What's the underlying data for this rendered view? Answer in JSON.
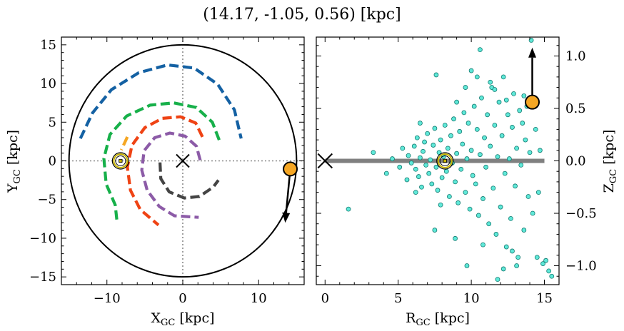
{
  "title": "(14.17, -1.05, 0.56) [kpc]",
  "left_panel": {
    "xlabel_main": "X",
    "xlabel_sub": "GC",
    "xlabel_unit": " [kpc]",
    "ylabel_main": "Y",
    "ylabel_sub": "GC",
    "ylabel_unit": " [kpc]"
  },
  "right_panel": {
    "xlabel_main": "R",
    "xlabel_sub": "GC",
    "xlabel_unit": " [kpc]",
    "ylabel_main": "Z",
    "ylabel_sub": "GC",
    "ylabel_unit": " [kpc]"
  },
  "colors": {
    "target": "#f5a623",
    "sun": "#c8b400",
    "scatter_fill": "#5fe8d8",
    "scatter_edge": "#127a70",
    "plane": "#808080",
    "arm_blue": "#1461a3",
    "arm_green": "#17b04a",
    "arm_orange": "#f5a623",
    "arm_red": "#ef4314",
    "arm_purple": "#8c5ba7",
    "arm_gray": "#444444"
  },
  "chart_data": [
    {
      "type": "line",
      "panel": "left",
      "title": "(14.17, -1.05, 0.56) [kpc]",
      "xlabel": "X_GC [kpc]",
      "ylabel": "Y_GC [kpc]",
      "xlim": [
        -16,
        16
      ],
      "ylim": [
        -16,
        16
      ],
      "xticks": [
        -10,
        0,
        10
      ],
      "yticks": [
        -15,
        -10,
        -5,
        0,
        5,
        10,
        15
      ],
      "grid": false,
      "boundary_circle_radius": 15,
      "crosshair": {
        "x": 0,
        "y": 0
      },
      "galactic_center": {
        "x": 0,
        "y": 0
      },
      "sun": {
        "x": -8.2,
        "y": 0.0
      },
      "target": {
        "x": 14.17,
        "y": -1.05
      },
      "velocity_arrow": {
        "from": [
          14.17,
          -1.05
        ],
        "to": [
          13.5,
          -8.0
        ]
      },
      "series": [
        {
          "color_key": "arm_blue",
          "points": [
            [
              -13.5,
              2.9
            ],
            [
              -11.9,
              6.2
            ],
            [
              -9.4,
              9.2
            ],
            [
              -5.8,
              11.4
            ],
            [
              -2.0,
              12.4
            ],
            [
              1.5,
              12.0
            ],
            [
              4.6,
              9.9
            ],
            [
              6.8,
              6.6
            ],
            [
              7.7,
              2.9
            ]
          ]
        },
        {
          "color_key": "arm_green",
          "points": [
            [
              4.8,
              2.7
            ],
            [
              3.9,
              5.0
            ],
            [
              1.8,
              6.9
            ],
            [
              -1.2,
              7.5
            ],
            [
              -4.3,
              7.2
            ],
            [
              -7.4,
              5.8
            ],
            [
              -9.6,
              3.4
            ],
            [
              -10.4,
              0.3
            ],
            [
              -10.1,
              -3.0
            ],
            [
              -8.9,
              -5.7
            ],
            [
              -8.7,
              -7.6
            ]
          ]
        },
        {
          "color_key": "arm_orange",
          "points": [
            [
              -7.3,
              3.1
            ],
            [
              -8.1,
              1.4
            ]
          ]
        },
        {
          "color_key": "arm_red",
          "points": [
            [
              2.6,
              3.1
            ],
            [
              1.7,
              4.9
            ],
            [
              -0.3,
              5.7
            ],
            [
              -2.7,
              5.5
            ],
            [
              -5.0,
              4.3
            ],
            [
              -6.7,
              2.0
            ],
            [
              -7.3,
              -0.8
            ],
            [
              -6.9,
              -3.8
            ],
            [
              -5.6,
              -6.3
            ],
            [
              -3.2,
              -8.3
            ]
          ]
        },
        {
          "color_key": "arm_purple",
          "points": [
            [
              2.3,
              0.1
            ],
            [
              1.8,
              1.9
            ],
            [
              0.3,
              3.2
            ],
            [
              -1.7,
              3.6
            ],
            [
              -3.7,
              3.0
            ],
            [
              -5.1,
              1.3
            ],
            [
              -5.4,
              -1.2
            ],
            [
              -4.7,
              -3.8
            ],
            [
              -3.1,
              -5.9
            ],
            [
              -1.1,
              -7.1
            ],
            [
              2.1,
              -7.3
            ]
          ]
        },
        {
          "color_key": "arm_gray",
          "points": [
            [
              -3.0,
              -0.2
            ],
            [
              -2.9,
              -2.3
            ],
            [
              -1.8,
              -4.0
            ],
            [
              0.2,
              -4.8
            ],
            [
              2.2,
              -4.6
            ],
            [
              4.0,
              -3.4
            ],
            [
              4.7,
              -2.5
            ]
          ]
        }
      ]
    },
    {
      "type": "scatter",
      "panel": "right",
      "xlabel": "R_GC [kpc]",
      "ylabel": "Z_GC [kpc]",
      "xlim": [
        -0.6,
        16.0
      ],
      "ylim": [
        -1.18,
        1.18
      ],
      "xticks": [
        0,
        5,
        10,
        15
      ],
      "yticks": [
        -1.0,
        -0.5,
        0.0,
        0.5,
        1.0
      ],
      "yaxis_side": "right",
      "grid": false,
      "galactic_plane": {
        "x0": 0,
        "x1": 15,
        "z": 0
      },
      "galactic_center": {
        "x": 0,
        "z": 0
      },
      "sun": {
        "x": 8.2,
        "z": 0.0
      },
      "target": {
        "x": 14.17,
        "z": 0.56
      },
      "velocity_arrow": {
        "from": [
          14.17,
          0.56
        ],
        "to": [
          14.17,
          1.08
        ]
      },
      "series": [
        {
          "name": "",
          "points": [
            [
              1.6,
              -0.46
            ],
            [
              3.3,
              0.08
            ],
            [
              4.2,
              -0.12
            ],
            [
              4.6,
              0.02
            ],
            [
              5.1,
              -0.06
            ],
            [
              5.3,
              0.12
            ],
            [
              5.6,
              -0.18
            ],
            [
              5.7,
              0.05
            ],
            [
              5.9,
              -0.02
            ],
            [
              6.1,
              0.14
            ],
            [
              6.2,
              -0.08
            ],
            [
              6.3,
              0.22
            ],
            [
              6.4,
              -0.15
            ],
            [
              6.5,
              0.03
            ],
            [
              6.6,
              -0.25
            ],
            [
              6.7,
              0.09
            ],
            [
              6.8,
              0.18
            ],
            [
              6.9,
              -0.04
            ],
            [
              7.0,
              0.26
            ],
            [
              7.1,
              -0.12
            ],
            [
              7.2,
              0.01
            ],
            [
              7.3,
              -0.22
            ],
            [
              7.4,
              0.15
            ],
            [
              7.5,
              0.31
            ],
            [
              7.6,
              -0.06
            ],
            [
              7.7,
              -0.28
            ],
            [
              7.8,
              0.08
            ],
            [
              7.9,
              0.2
            ],
            [
              8.0,
              -0.16
            ],
            [
              8.1,
              0.04
            ],
            [
              8.2,
              0.34
            ],
            [
              8.3,
              -0.1
            ],
            [
              8.4,
              0.12
            ],
            [
              8.5,
              -0.34
            ],
            [
              8.6,
              0.24
            ],
            [
              8.7,
              -0.02
            ],
            [
              8.8,
              0.4
            ],
            [
              8.9,
              -0.2
            ],
            [
              9.0,
              0.07
            ],
            [
              9.1,
              -0.4
            ],
            [
              9.2,
              0.28
            ],
            [
              9.3,
              -0.08
            ],
            [
              9.4,
              0.16
            ],
            [
              9.5,
              0.46
            ],
            [
              9.6,
              -0.3
            ],
            [
              9.7,
              0.02
            ],
            [
              9.8,
              0.36
            ],
            [
              9.9,
              -0.46
            ],
            [
              10.0,
              0.1
            ],
            [
              10.1,
              -0.14
            ],
            [
              10.2,
              0.52
            ],
            [
              10.3,
              -0.22
            ],
            [
              10.4,
              0.3
            ],
            [
              10.5,
              -0.52
            ],
            [
              10.6,
              0.06
            ],
            [
              10.7,
              0.6
            ],
            [
              10.8,
              -0.36
            ],
            [
              10.9,
              0.22
            ],
            [
              11.0,
              -0.06
            ],
            [
              11.1,
              0.44
            ],
            [
              11.2,
              -0.6
            ],
            [
              11.3,
              0.14
            ],
            [
              11.4,
              0.7
            ],
            [
              11.5,
              -0.26
            ],
            [
              11.6,
              0.34
            ],
            [
              11.7,
              -0.7
            ],
            [
              11.8,
              0.04
            ],
            [
              11.9,
              0.56
            ],
            [
              12.0,
              -0.44
            ],
            [
              12.1,
              0.24
            ],
            [
              12.2,
              0.8
            ],
            [
              12.3,
              -0.12
            ],
            [
              12.4,
              -0.82
            ],
            [
              12.5,
              0.44
            ],
            [
              12.6,
              0.02
            ],
            [
              12.7,
              -0.55
            ],
            [
              12.8,
              0.32
            ],
            [
              12.9,
              0.64
            ],
            [
              13.0,
              -0.24
            ],
            [
              13.1,
              0.12
            ],
            [
              13.2,
              -0.92
            ],
            [
              13.3,
              0.48
            ],
            [
              13.4,
              -0.04
            ],
            [
              13.5,
              0.36
            ],
            [
              13.6,
              -0.66
            ],
            [
              13.7,
              0.2
            ],
            [
              13.8,
              0.52
            ],
            [
              13.9,
              -0.34
            ],
            [
              14.0,
              0.08
            ],
            [
              14.2,
              -0.5
            ],
            [
              14.4,
              0.3
            ],
            [
              14.5,
              -0.92
            ],
            [
              14.7,
              0.1
            ],
            [
              14.9,
              -0.98
            ],
            [
              15.1,
              -0.95
            ],
            [
              15.3,
              -1.05
            ],
            [
              15.5,
              -1.1
            ],
            [
              14.6,
              -0.3
            ],
            [
              13.1,
              -1.0
            ],
            [
              12.2,
              -1.03
            ],
            [
              10.6,
              1.06
            ],
            [
              14.1,
              1.15
            ],
            [
              11.8,
              -1.13
            ],
            [
              9.7,
              -1.0
            ],
            [
              10.4,
              0.8
            ],
            [
              11.3,
              0.75
            ],
            [
              12.8,
              -0.86
            ],
            [
              9.0,
              0.56
            ],
            [
              7.6,
              0.82
            ],
            [
              7.5,
              -0.66
            ],
            [
              10.0,
              0.86
            ],
            [
              8.9,
              -0.74
            ],
            [
              11.6,
              0.68
            ],
            [
              13.6,
              0.62
            ],
            [
              12.4,
              0.58
            ],
            [
              7.9,
              -0.42
            ],
            [
              6.5,
              0.36
            ],
            [
              6.2,
              -0.3
            ],
            [
              9.6,
              0.7
            ],
            [
              10.8,
              -0.8
            ]
          ]
        }
      ]
    }
  ]
}
